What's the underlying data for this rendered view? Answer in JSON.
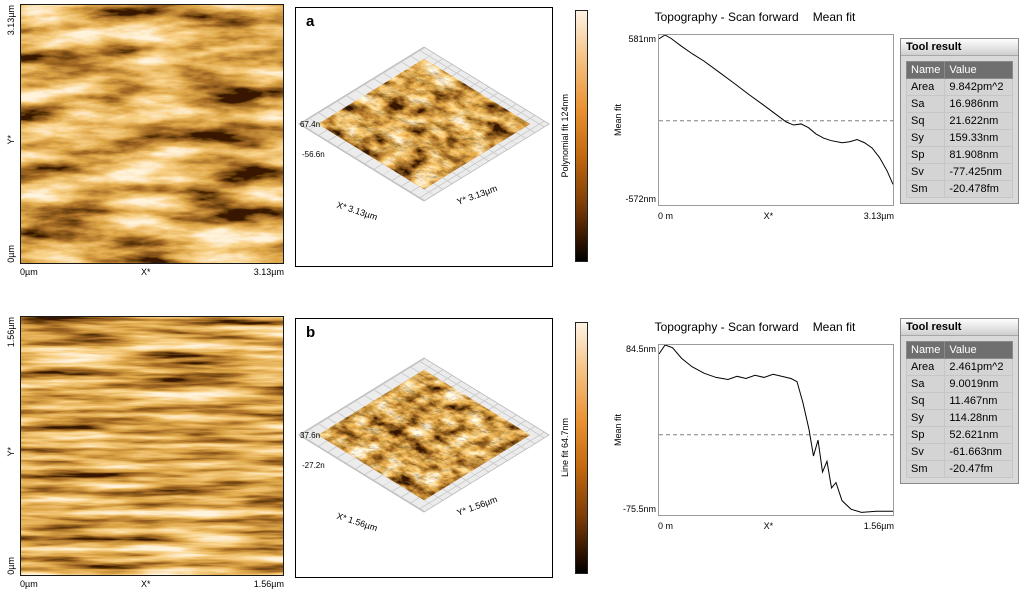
{
  "colors": {
    "afm_orange": "#d97a1d",
    "panel_gray": "#d9d9d9",
    "table_header_gray": "#6f6f6f"
  },
  "panels": [
    {
      "label": "a",
      "image2d": {
        "y_top": "3.13µm",
        "y_mid": "Y*",
        "y_bottom": "0µm",
        "x_left": "0µm",
        "x_mid": "X*",
        "x_right": "3.13µm"
      },
      "surface3d": {
        "z_max": "67.4n",
        "z_min": "-56.6n",
        "x_axis": "X* 3.13µm",
        "y_axis": "Y* 3.13µm",
        "colorbar_label": "Polynomial fit 124nm"
      },
      "profile": {
        "title": "Topography - Scan forward",
        "fit": "Mean fit",
        "y_axis_label": "Mean fit",
        "y_max": "581nm",
        "y_min": "-572nm",
        "x_left": "0 m",
        "x_mid": "X*",
        "x_right": "3.13µm"
      },
      "tool_result": {
        "title": "Tool result",
        "columns": [
          "Name",
          "Value"
        ],
        "rows": [
          [
            "Area",
            "9.842pm^2"
          ],
          [
            "Sa",
            "16.986nm"
          ],
          [
            "Sq",
            "21.622nm"
          ],
          [
            "Sy",
            "159.33nm"
          ],
          [
            "Sp",
            "81.908nm"
          ],
          [
            "Sv",
            "-77.425nm"
          ],
          [
            "Sm",
            "-20.478fm"
          ]
        ]
      }
    },
    {
      "label": "b",
      "image2d": {
        "y_top": "1.56µm",
        "y_mid": "Y*",
        "y_bottom": "0µm",
        "x_left": "0µm",
        "x_mid": "X*",
        "x_right": "1.56µm"
      },
      "surface3d": {
        "z_max": "37.6n",
        "z_min": "-27.2n",
        "x_axis": "X* 1.56µm",
        "y_axis": "Y* 1.56µm",
        "colorbar_label": "Line fit 64.7nm"
      },
      "profile": {
        "title": "Topography - Scan forward",
        "fit": "Mean fit",
        "y_axis_label": "Mean fit",
        "y_max": "84.5nm",
        "y_min": "-75.5nm",
        "x_left": "0 m",
        "x_mid": "X*",
        "x_right": "1.56µm"
      },
      "tool_result": {
        "title": "Tool result",
        "columns": [
          "Name",
          "Value"
        ],
        "rows": [
          [
            "Area",
            "2.461pm^2"
          ],
          [
            "Sa",
            "9.0019nm"
          ],
          [
            "Sq",
            "11.467nm"
          ],
          [
            "Sy",
            "114.28nm"
          ],
          [
            "Sp",
            "52.621nm"
          ],
          [
            "Sv",
            "-61.663nm"
          ],
          [
            "Sm",
            "-20.47fm"
          ]
        ]
      }
    }
  ],
  "chart_data": [
    {
      "type": "line",
      "title": "Topography - Scan forward",
      "legend": "Mean fit",
      "ylabel": "Mean fit",
      "x_unit": "µm",
      "y_unit": "nm",
      "xlim": [
        0,
        3.13
      ],
      "ylim": [
        -572,
        581
      ],
      "x_ticks": [
        "0 m",
        "X*",
        "3.13µm"
      ],
      "y_ticks": [
        "-572nm",
        "581nm"
      ],
      "mean_line": 0,
      "grid": false,
      "x": [
        0,
        0.08,
        0.16,
        0.3,
        0.45,
        0.6,
        0.8,
        1.0,
        1.2,
        1.4,
        1.55,
        1.7,
        1.8,
        1.9,
        2.0,
        2.1,
        2.2,
        2.3,
        2.45,
        2.55,
        2.65,
        2.75,
        2.85,
        2.95,
        3.05,
        3.13
      ],
      "y": [
        555,
        581,
        558,
        505,
        452,
        405,
        330,
        255,
        178,
        105,
        48,
        -8,
        -30,
        -22,
        -48,
        -90,
        -118,
        -135,
        -150,
        -143,
        -128,
        -150,
        -185,
        -250,
        -340,
        -432
      ]
    },
    {
      "type": "line",
      "title": "Topography - Scan forward",
      "legend": "Mean fit",
      "ylabel": "Mean fit",
      "x_unit": "µm",
      "y_unit": "nm",
      "xlim": [
        0,
        1.56
      ],
      "ylim": [
        -75.5,
        84.5
      ],
      "x_ticks": [
        "0 m",
        "X*",
        "1.56µm"
      ],
      "y_ticks": [
        "-75.5nm",
        "84.5nm"
      ],
      "mean_line": 0,
      "grid": false,
      "x": [
        0,
        0.04,
        0.09,
        0.15,
        0.22,
        0.3,
        0.38,
        0.46,
        0.52,
        0.58,
        0.64,
        0.7,
        0.76,
        0.82,
        0.88,
        0.92,
        0.96,
        1.0,
        1.03,
        1.06,
        1.09,
        1.12,
        1.15,
        1.18,
        1.22,
        1.28,
        1.35,
        1.45,
        1.56
      ],
      "y": [
        76,
        84.5,
        82,
        72,
        64,
        58,
        54,
        52,
        55,
        53,
        56,
        54,
        57,
        55,
        53,
        50,
        30,
        5,
        -20,
        -5,
        -35,
        -25,
        -50,
        -45,
        -62,
        -70,
        -73,
        -72,
        -72
      ]
    }
  ]
}
